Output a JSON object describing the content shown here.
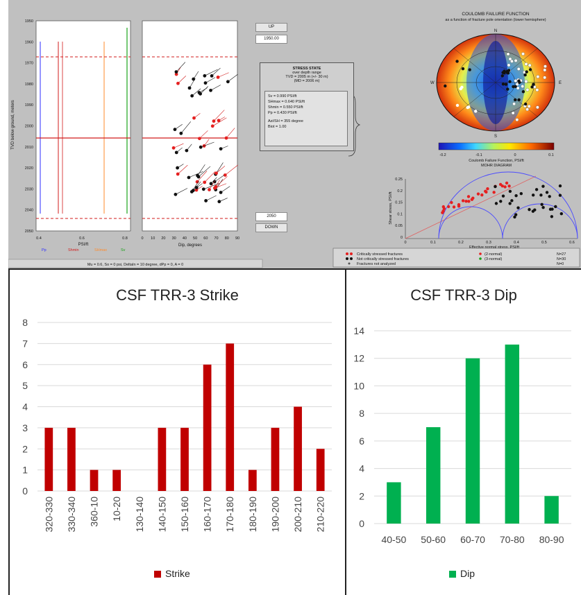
{
  "top": {
    "log_label": "TVD below ground, meters",
    "depth_ticks": [
      "1950",
      "1960",
      "1970",
      "1980",
      "1990",
      "2000",
      "2010",
      "2020",
      "2030",
      "2040",
      "2050"
    ],
    "left_xticks": [
      "0.4",
      "0.6",
      "0.8"
    ],
    "left_xlabel": "PSI/ft",
    "left_legend": [
      "Pp",
      "Shmin",
      "SHmax",
      "Sv"
    ],
    "mid_xticks": [
      "0",
      "10",
      "20",
      "30",
      "40",
      "50",
      "60",
      "70",
      "80",
      "90"
    ],
    "mid_xlabel": "Dip, degrees",
    "up_button": "UP",
    "depth_top": "1950.00",
    "depth_bottom": "2050",
    "down_button": "DOWN",
    "stress_title": "STRESS STATE",
    "stress_sub1": "over depth range",
    "stress_sub2": "TVD = 2005 m (+/- 30 m)",
    "stress_sub3": "(MD = 2006 m)",
    "stress_lines": [
      "Sv = 0.990 PSI/ft",
      "SHmax = 0.640 PSI/ft",
      "Shmin = 0.550 PSI/ft",
      "Pp = 0.430 PSI/ft",
      "Azi/SH = 355 degree",
      "Biot = 1.00"
    ],
    "cff_title1": "COULOMB FAILURE FUNCTION",
    "cff_title2": "as a function of fracture pole orientation (lower hemisphere)",
    "compass": [
      "N",
      "E",
      "S",
      "W"
    ],
    "colorbar_ticks": [
      "-0.2",
      "-0.1",
      "0",
      "0.1"
    ],
    "colorbar_label": "Coulomb Failure Function, PSI/ft",
    "mohr_title": "MOHR DIAGRAM",
    "mohr_yticks": [
      "0.25",
      "0.2",
      "0.15",
      "0.1",
      "0.05",
      "0"
    ],
    "mohr_xticks": [
      "0",
      "0.1",
      "0.2",
      "0.3",
      "0.4",
      "0.5",
      "0.6"
    ],
    "mohr_ylabel": "Shear stress, PSI/ft",
    "mohr_xlabel": "Effective normal stress, PSI/ft",
    "frac_legend": [
      "Critically stressed fractures",
      "Not critically stressed fractures",
      "Fractures not analyzed"
    ],
    "frac_counts": [
      "N=27",
      "N=30",
      "N=0"
    ],
    "frac_normal": [
      "(2-normal)",
      "(3-normal)"
    ],
    "bottom_status": "Mu = 0.6,    So = 0 psi,    DeltaIn = 10 degree,    dPp = 0,    A = 0"
  },
  "chart_data": [
    {
      "type": "bar",
      "title": "CSF TRR-3 Strike",
      "categories": [
        "320-330",
        "330-340",
        "360-10",
        "10-20",
        "130-140",
        "140-150",
        "150-160",
        "160-170",
        "170-180",
        "180-190",
        "190-200",
        "200-210",
        "210-220"
      ],
      "series": [
        {
          "name": "Strike",
          "values": [
            3,
            3,
            1,
            1,
            0,
            3,
            3,
            6,
            7,
            1,
            3,
            4,
            2
          ],
          "color": "#c00000"
        }
      ],
      "yticks": [
        "0",
        "1",
        "2",
        "3",
        "4",
        "5",
        "6",
        "7",
        "8"
      ],
      "ylim": [
        0,
        8
      ],
      "legend": "bottom",
      "grid": true
    },
    {
      "type": "bar",
      "title": "CSF TRR-3 Dip",
      "categories": [
        "40-50",
        "50-60",
        "60-70",
        "70-80",
        "80-90"
      ],
      "series": [
        {
          "name": "Dip",
          "values": [
            3,
            7,
            12,
            13,
            2
          ],
          "color": "#00b050"
        }
      ],
      "yticks": [
        "0",
        "2",
        "4",
        "6",
        "8",
        "10",
        "12",
        "14"
      ],
      "ylim": [
        0,
        14
      ],
      "legend": "bottom",
      "grid": true
    }
  ]
}
